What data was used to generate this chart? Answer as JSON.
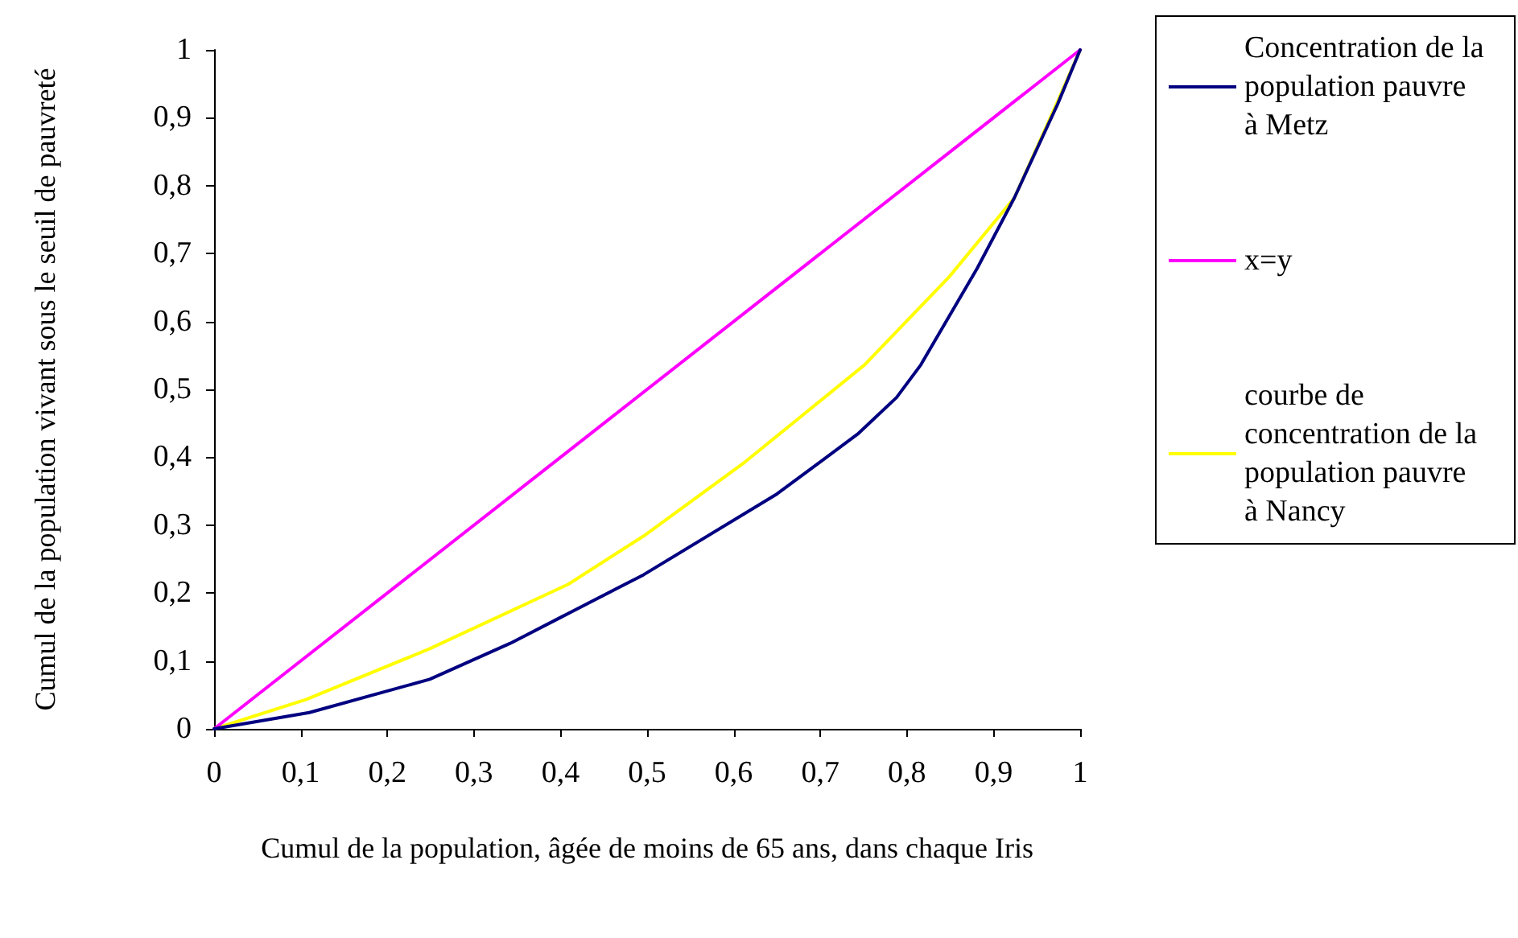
{
  "chart_data": {
    "type": "line",
    "xlabel": "Cumul de la population, âgée de moins de 65 ans, dans chaque Iris",
    "ylabel": "Cumul de la population vivant sous le seuil de pauvreté",
    "xlim": [
      0,
      1
    ],
    "ylim": [
      0,
      1
    ],
    "xticks": [
      0,
      {
        "value": 0.1,
        "label": "0,1"
      },
      {
        "value": 0.2,
        "label": "0,2"
      },
      {
        "value": 0.3,
        "label": "0,3"
      },
      {
        "value": 0.4,
        "label": "0,4"
      },
      {
        "value": 0.5,
        "label": "0,5"
      },
      {
        "value": 0.6,
        "label": "0,6"
      },
      {
        "value": 0.7,
        "label": "0,7"
      },
      {
        "value": 0.8,
        "label": "0,8"
      },
      {
        "value": 0.9,
        "label": "0,9"
      },
      1
    ],
    "yticks": [
      0,
      {
        "value": 0.1,
        "label": "0,1"
      },
      {
        "value": 0.2,
        "label": "0,2"
      },
      {
        "value": 0.3,
        "label": "0,3"
      },
      {
        "value": 0.4,
        "label": "0,4"
      },
      {
        "value": 0.5,
        "label": "0,5"
      },
      {
        "value": 0.6,
        "label": "0,6"
      },
      {
        "value": 0.7,
        "label": "0,7"
      },
      {
        "value": 0.8,
        "label": "0,8"
      },
      {
        "value": 0.9,
        "label": "0,9"
      },
      1
    ],
    "grid": false,
    "legend": "right",
    "marker": "none",
    "line_style": "solid",
    "series": [
      {
        "name": "Concentration de la population pauvre à Metz",
        "color": "#000080",
        "x": [
          0,
          0.11,
          0.249,
          0.342,
          0.403,
          0.496,
          0.65,
          0.743,
          0.788,
          0.816,
          0.881,
          0.924,
          0.974,
          1
        ],
        "values": [
          0,
          0.024,
          0.073,
          0.126,
          0.166,
          0.227,
          0.346,
          0.434,
          0.488,
          0.536,
          0.678,
          0.782,
          0.92,
          1
        ]
      },
      {
        "name": "x=y",
        "color": "#ff00ff",
        "x": [
          0,
          1
        ],
        "values": [
          0,
          1
        ]
      },
      {
        "name": "courbe de concentration de la population pauvre à Nancy",
        "color": "#ffff00",
        "x": [
          0,
          0.106,
          0.249,
          0.409,
          0.496,
          0.613,
          0.751,
          0.849,
          0.924,
          0.974,
          1
        ],
        "values": [
          0,
          0.043,
          0.118,
          0.213,
          0.284,
          0.393,
          0.536,
          0.666,
          0.782,
          0.924,
          1
        ]
      }
    ]
  }
}
